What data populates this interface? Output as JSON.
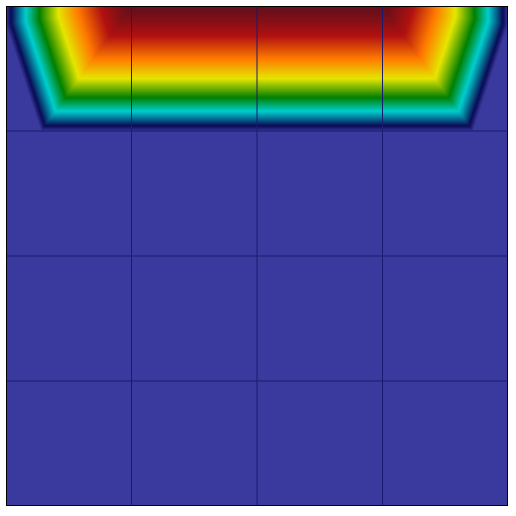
{
  "field_plot": {
    "grid": {
      "rows": 4,
      "cols": 4
    },
    "colors": {
      "background": "#ffffff",
      "border": "#000000",
      "base_fill": "#3a3a9e",
      "mesh_lines": "#1a1a6e"
    },
    "colormap": [
      {
        "t": 0.0,
        "color": "#3a3a9e"
      },
      {
        "t": 0.06,
        "color": "#0a0a55"
      },
      {
        "t": 0.2,
        "color": "#00cfcf"
      },
      {
        "t": 0.32,
        "color": "#008000"
      },
      {
        "t": 0.48,
        "color": "#e6e600"
      },
      {
        "t": 0.64,
        "color": "#ff7a00"
      },
      {
        "t": 0.82,
        "color": "#b01010"
      },
      {
        "t": 1.0,
        "color": "#6b0f1a"
      }
    ],
    "field": {
      "profile": "top-boundary-hot",
      "hot_band_rows": 1,
      "corner_bevel": true
    }
  }
}
